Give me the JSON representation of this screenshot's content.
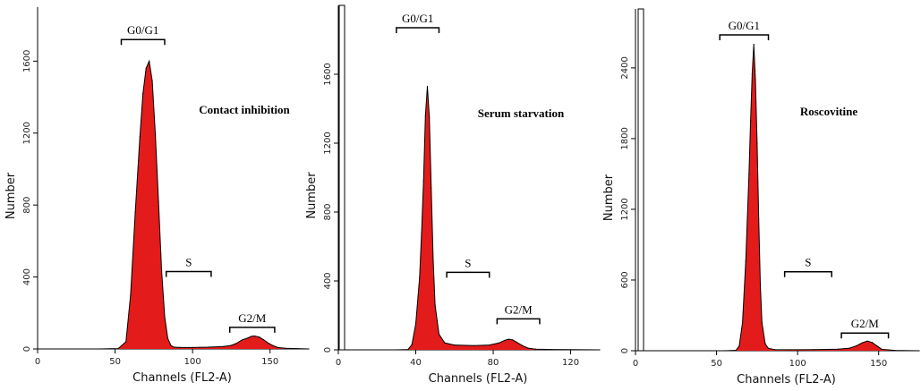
{
  "chart_data": [
    {
      "type": "area",
      "title": "Contact inhibition",
      "xlabel": "Channels (FL2-A)",
      "ylabel": "Number",
      "xlim": [
        0,
        175
      ],
      "ylim": [
        0,
        1900
      ],
      "xticks": [
        0,
        50,
        100,
        150
      ],
      "yticks": [
        0,
        400,
        800,
        1200,
        1600
      ],
      "gates": [
        {
          "label": "G0/G1",
          "x0": 54,
          "x1": 82,
          "y": 1720
        },
        {
          "label": "S",
          "x0": 83,
          "x1": 112,
          "y": 430
        },
        {
          "label": "G2/M",
          "x0": 124,
          "x1": 153,
          "y": 120
        }
      ],
      "series": [
        {
          "x": [
            0,
            40,
            52,
            57,
            60,
            63,
            66,
            68,
            70,
            72,
            74,
            76,
            78,
            80,
            82,
            84,
            86,
            88,
            92,
            100,
            110,
            120,
            125,
            128,
            132,
            136,
            138,
            140,
            143,
            146,
            149,
            152,
            155,
            160,
            175
          ],
          "y": [
            0,
            0,
            2,
            40,
            300,
            760,
            1180,
            1420,
            1560,
            1600,
            1490,
            1190,
            820,
            440,
            180,
            60,
            20,
            10,
            8,
            8,
            10,
            14,
            20,
            30,
            50,
            62,
            70,
            72,
            66,
            50,
            32,
            18,
            8,
            4,
            0
          ]
        }
      ]
    },
    {
      "type": "area",
      "title": "Serum starvation",
      "xlabel": "Channels (FL2-A)",
      "ylabel": "Number",
      "xlim": [
        0,
        135
      ],
      "ylim": [
        0,
        2000
      ],
      "xticks": [
        0,
        40,
        80,
        120
      ],
      "yticks": [
        0,
        400,
        800,
        1200,
        1600
      ],
      "gates": [
        {
          "label": "G0/G1",
          "x0": 30,
          "x1": 52,
          "y": 1870
        },
        {
          "label": "S",
          "x0": 56,
          "x1": 78,
          "y": 450
        },
        {
          "label": "G2/M",
          "x0": 82,
          "x1": 104,
          "y": 180
        }
      ],
      "series": [
        {
          "x": [
            0,
            30,
            36,
            38,
            40,
            42,
            43,
            44,
            45,
            46,
            47,
            48,
            49,
            50,
            52,
            55,
            60,
            70,
            78,
            83,
            86,
            88,
            90,
            92,
            95,
            98,
            102,
            110,
            135
          ],
          "y": [
            0,
            0,
            2,
            30,
            150,
            420,
            680,
            980,
            1360,
            1530,
            1350,
            940,
            520,
            260,
            90,
            40,
            28,
            25,
            28,
            40,
            55,
            62,
            58,
            45,
            25,
            10,
            4,
            2,
            0
          ]
        }
      ]
    },
    {
      "type": "area",
      "title": "Roscovitine",
      "xlabel": "Channels (FL2-A)",
      "ylabel": "Number",
      "xlim": [
        0,
        175
      ],
      "ylim": [
        0,
        2900
      ],
      "xticks": [
        0,
        50,
        100,
        150
      ],
      "yticks": [
        0,
        600,
        1200,
        1800,
        2400
      ],
      "gates": [
        {
          "label": "G0/G1",
          "x0": 52,
          "x1": 82,
          "y": 2680
        },
        {
          "label": "S",
          "x0": 92,
          "x1": 121,
          "y": 670
        },
        {
          "label": "G2/M",
          "x0": 127,
          "x1": 156,
          "y": 150
        }
      ],
      "series": [
        {
          "x": [
            0,
            55,
            62,
            64,
            66,
            68,
            70,
            71,
            72,
            73,
            74,
            75,
            76,
            77,
            78,
            80,
            82,
            86,
            95,
            110,
            125,
            132,
            136,
            140,
            143,
            146,
            149,
            152,
            160,
            175
          ],
          "y": [
            0,
            0,
            4,
            40,
            240,
            760,
            1500,
            1950,
            2350,
            2600,
            2300,
            1760,
            1120,
            560,
            240,
            60,
            20,
            10,
            8,
            10,
            14,
            22,
            40,
            68,
            82,
            70,
            40,
            12,
            3,
            0
          ]
        }
      ]
    }
  ]
}
